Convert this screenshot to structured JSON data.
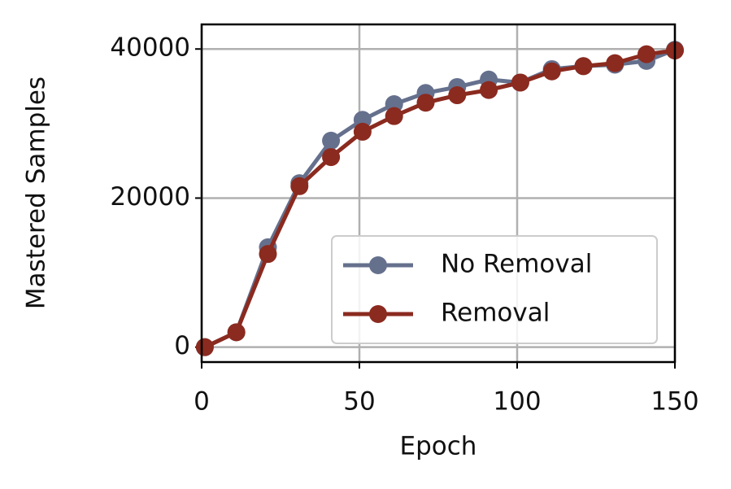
{
  "chart_data": {
    "type": "line",
    "x_label": "Epoch",
    "y_label": "Mastered Samples",
    "x": [
      1,
      11,
      21,
      31,
      41,
      51,
      61,
      71,
      81,
      91,
      101,
      111,
      121,
      131,
      141,
      150
    ],
    "series": [
      {
        "name": "No Removal",
        "color": "#65708d",
        "values": [
          0,
          2000,
          13400,
          22000,
          27700,
          30500,
          32600,
          34100,
          34900,
          35900,
          35500,
          37300,
          37700,
          37900,
          38400,
          39900
        ]
      },
      {
        "name": "Removal",
        "color": "#8b2a1f",
        "values": [
          0,
          2000,
          12500,
          21600,
          25500,
          28900,
          31000,
          32800,
          33800,
          34500,
          35500,
          37000,
          37700,
          38100,
          39300,
          39800
        ]
      }
    ],
    "xlim": [
      0,
      150
    ],
    "xticks": [
      0,
      50,
      100,
      150
    ],
    "ylim": [
      -2000,
      43300
    ],
    "yticks": [
      0,
      20000,
      40000
    ],
    "grid": true,
    "legend": "lower right"
  }
}
